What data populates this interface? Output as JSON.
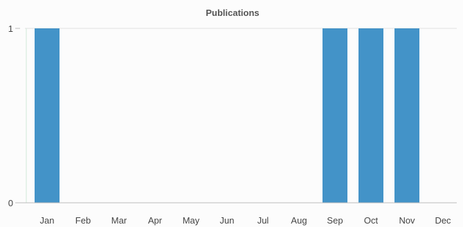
{
  "chart_data": {
    "type": "bar",
    "title": "Publications",
    "categories": [
      "Jan",
      "Feb",
      "Mar",
      "Apr",
      "May",
      "Jun",
      "Jul",
      "Aug",
      "Sep",
      "Oct",
      "Nov",
      "Dec"
    ],
    "values": [
      1,
      0,
      0,
      0,
      0,
      0,
      0,
      0,
      1,
      1,
      1,
      0
    ],
    "xlabel": "",
    "ylabel": "",
    "ylim": [
      0,
      1
    ],
    "yticks": [
      "0",
      "1"
    ],
    "grid": true,
    "legend": "none",
    "colors": {
      "bar": "#4393c8",
      "grid": "#e0e0e0",
      "axis": "#bbbbbb",
      "y_axis_line": "#cfe8d8"
    }
  }
}
